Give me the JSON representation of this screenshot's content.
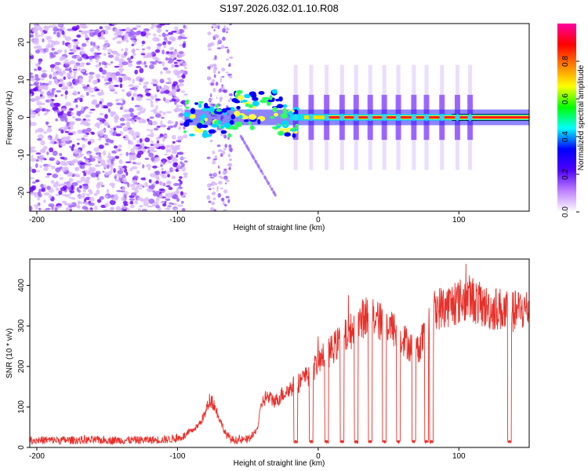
{
  "figure_title": "S197.2026.032.01.10.R08",
  "chart_data": [
    {
      "type": "heatmap",
      "title": "S197.2026.032.01.10.R08",
      "xlabel": "Height of straight line (km)",
      "ylabel": "Frequency (Hz)",
      "xlim": [
        -205,
        150
      ],
      "ylim": [
        -25,
        25
      ],
      "x_ticks": [
        -200,
        -100,
        0,
        100
      ],
      "x_tick_labels": [
        "-200",
        "-100",
        "0",
        "100"
      ],
      "y_ticks": [
        20,
        10,
        0,
        -10,
        -20
      ],
      "y_tick_labels": [
        "20",
        "10",
        "0",
        "-10",
        "-20"
      ],
      "colorbar": {
        "label": "Normalized spectral amplitude",
        "range": [
          0,
          1
        ],
        "ticks": [
          0.0,
          0.2,
          0.4,
          0.6,
          0.8
        ],
        "tick_labels": [
          "0.0",
          "0.2",
          "0.4",
          "0.6",
          "0.8"
        ],
        "colors": [
          "#ffffff",
          "#c080ff",
          "#5000ff",
          "#0000ff",
          "#00ffff",
          "#00ff00",
          "#ffff00",
          "#ff8000",
          "#ff0000",
          "#ff00a0"
        ]
      },
      "features": [
        {
          "name": "noise",
          "x_range": [
            -205,
            -94
          ],
          "freq_range": [
            -25,
            25
          ],
          "amplitude": 0.15
        },
        {
          "name": "speckle-band",
          "x_range": [
            -78,
            -62
          ],
          "freq_range": [
            -25,
            25
          ],
          "amplitude": 0.1
        },
        {
          "name": "carrier-line",
          "x_range": [
            -95,
            150
          ],
          "freq_center": 0,
          "amplitude": 0.95
        },
        {
          "name": "dropout-segments",
          "x_centers": [
            -16,
            -5,
            6,
            17,
            27,
            37,
            47,
            57,
            68,
            77,
            88,
            99,
            108
          ],
          "amplitude": 0.3
        }
      ]
    },
    {
      "type": "line",
      "xlabel": "Height of straight line (km)",
      "ylabel": "SNR (10 * v/v)",
      "xlim": [
        -205,
        150
      ],
      "ylim": [
        0,
        465
      ],
      "x_ticks": [
        -200,
        -100,
        0,
        100
      ],
      "x_tick_labels": [
        "-200",
        "-100",
        "0",
        "100"
      ],
      "y_ticks": [
        0,
        100,
        200,
        300,
        400
      ],
      "y_tick_labels": [
        "0",
        "100",
        "200",
        "300",
        "400"
      ],
      "color": "#e8302a",
      "series": [
        {
          "name": "SNR",
          "x": [
            -205,
            -190,
            -170,
            -150,
            -130,
            -110,
            -100,
            -95,
            -90,
            -85,
            -80,
            -77,
            -74,
            -70,
            -66,
            -62,
            -58,
            -54,
            -50,
            -46,
            -43,
            -40,
            -37,
            -34,
            -30,
            -26,
            -22,
            -18,
            -14,
            -10,
            -6,
            -2,
            0,
            4,
            8,
            12,
            16,
            20,
            24,
            28,
            32,
            36,
            40,
            44,
            48,
            52,
            56,
            60,
            64,
            68,
            72,
            76,
            80,
            84,
            88,
            92,
            96,
            100,
            104,
            108,
            112,
            116,
            120,
            124,
            128,
            132,
            136,
            140,
            144,
            150
          ],
          "y": [
            18,
            18,
            18,
            18,
            18,
            19,
            22,
            28,
            40,
            55,
            85,
            120,
            105,
            70,
            35,
            20,
            18,
            18,
            20,
            30,
            50,
            110,
            125,
            120,
            115,
            130,
            140,
            150,
            160,
            170,
            180,
            200,
            210,
            225,
            235,
            250,
            265,
            275,
            290,
            300,
            320,
            330,
            320,
            310,
            300,
            295,
            285,
            270,
            255,
            240,
            250,
            280,
            320,
            345,
            345,
            350,
            355,
            360,
            365,
            370,
            360,
            350,
            345,
            340,
            345,
            335,
            330,
            335,
            340,
            340
          ]
        }
      ],
      "dropouts": [
        {
          "x": -16,
          "y": 15
        },
        {
          "x": -5,
          "y": 15
        },
        {
          "x": 6,
          "y": 15
        },
        {
          "x": 17,
          "y": 15
        },
        {
          "x": 27,
          "y": 15
        },
        {
          "x": 37,
          "y": 15
        },
        {
          "x": 47,
          "y": 15
        },
        {
          "x": 57,
          "y": 15
        },
        {
          "x": 68,
          "y": 15
        },
        {
          "x": 77,
          "y": 15
        },
        {
          "x": 80.5,
          "y": 15
        },
        {
          "x": 136,
          "y": 15
        }
      ]
    }
  ]
}
